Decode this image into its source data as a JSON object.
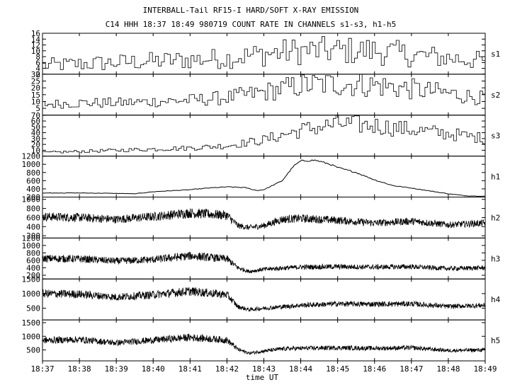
{
  "chart_data": {
    "type": "line",
    "title": "INTERBALL-Tail RF15-I HARD/SOFT X-RAY EMISSION",
    "subtitle": "C14 HHH 18:37 18:49 980719  COUNT RATE IN CHANNELS s1-s3, h1-h5",
    "xlabel": "time UT",
    "x_ticks": [
      "18:37",
      "18:38",
      "18:39",
      "18:40",
      "18:41",
      "18:42",
      "18:43",
      "18:44",
      "18:45",
      "18:46",
      "18:47",
      "18:48",
      "18:49"
    ],
    "grid": false,
    "series": [
      {
        "name": "s1",
        "ylim": [
          2,
          16
        ],
        "y_ticks": [
          "2",
          "4",
          "6",
          "8",
          "10",
          "12",
          "14",
          "16"
        ],
        "noise": 0.35,
        "trend": [
          [
            0,
            5
          ],
          [
            1,
            5.5
          ],
          [
            2,
            6
          ],
          [
            3,
            6.5
          ],
          [
            4,
            7
          ],
          [
            5,
            7.5
          ],
          [
            6,
            9
          ],
          [
            7,
            10
          ],
          [
            8,
            10
          ],
          [
            9,
            10
          ],
          [
            10,
            8.5
          ],
          [
            11,
            7.5
          ],
          [
            12,
            6.5
          ]
        ]
      },
      {
        "name": "s2",
        "ylim": [
          0,
          30
        ],
        "y_ticks": [
          "5",
          "10",
          "15",
          "20",
          "25",
          "30"
        ],
        "noise": 0.3,
        "trend": [
          [
            0,
            8
          ],
          [
            1,
            9
          ],
          [
            2,
            9
          ],
          [
            3,
            10
          ],
          [
            4,
            11
          ],
          [
            5,
            13
          ],
          [
            6,
            17
          ],
          [
            7,
            22
          ],
          [
            8,
            23
          ],
          [
            9,
            22
          ],
          [
            10,
            19
          ],
          [
            11,
            16
          ],
          [
            12,
            12
          ]
        ]
      },
      {
        "name": "s3",
        "ylim": [
          0,
          70
        ],
        "y_ticks": [
          "10",
          "20",
          "30",
          "40",
          "50",
          "60",
          "70"
        ],
        "noise": 0.22,
        "trend": [
          [
            0,
            6
          ],
          [
            1,
            8
          ],
          [
            2,
            10
          ],
          [
            3,
            12
          ],
          [
            4,
            14
          ],
          [
            5,
            18
          ],
          [
            6,
            28
          ],
          [
            7,
            45
          ],
          [
            8,
            55
          ],
          [
            9,
            52
          ],
          [
            10,
            45
          ],
          [
            11,
            38
          ],
          [
            12,
            30
          ]
        ]
      },
      {
        "name": "h1",
        "ylim": [
          200,
          1200
        ],
        "y_ticks": [
          "200",
          "400",
          "600",
          "800",
          "1000",
          "1200"
        ],
        "noise": 0.02,
        "trend": [
          [
            0,
            300
          ],
          [
            1,
            300
          ],
          [
            2,
            290
          ],
          [
            2.5,
            280
          ],
          [
            3,
            330
          ],
          [
            4,
            380
          ],
          [
            4.5,
            420
          ],
          [
            5,
            450
          ],
          [
            5.5,
            430
          ],
          [
            5.8,
            360
          ],
          [
            6,
            380
          ],
          [
            6.5,
            600
          ],
          [
            6.8,
            950
          ],
          [
            7,
            1080
          ],
          [
            7.4,
            1100
          ],
          [
            7.8,
            1000
          ],
          [
            8,
            920
          ],
          [
            8.5,
            800
          ],
          [
            9,
            620
          ],
          [
            9.5,
            480
          ],
          [
            10,
            420
          ],
          [
            10.5,
            350
          ],
          [
            11,
            280
          ],
          [
            11.5,
            230
          ],
          [
            12,
            220
          ]
        ]
      },
      {
        "name": "h2",
        "ylim": [
          150,
          1050
        ],
        "y_ticks": [
          "200",
          "400",
          "600",
          "800",
          "1000"
        ],
        "noise": 0.1,
        "trend": [
          [
            0,
            620
          ],
          [
            1,
            600
          ],
          [
            2,
            560
          ],
          [
            3,
            620
          ],
          [
            4,
            700
          ],
          [
            5,
            650
          ],
          [
            5.3,
            420
          ],
          [
            5.6,
            380
          ],
          [
            6,
            420
          ],
          [
            6.5,
            560
          ],
          [
            7,
            580
          ],
          [
            8,
            540
          ],
          [
            9,
            480
          ],
          [
            10,
            520
          ],
          [
            11,
            440
          ],
          [
            12,
            480
          ]
        ]
      },
      {
        "name": "h3",
        "ylim": [
          100,
          1200
        ],
        "y_ticks": [
          "200",
          "400",
          "600",
          "800",
          "1000",
          "1200"
        ],
        "noise": 0.1,
        "trend": [
          [
            0,
            650
          ],
          [
            1,
            640
          ],
          [
            2,
            580
          ],
          [
            3,
            620
          ],
          [
            4,
            720
          ],
          [
            5,
            640
          ],
          [
            5.3,
            400
          ],
          [
            5.6,
            300
          ],
          [
            6,
            360
          ],
          [
            7,
            420
          ],
          [
            8,
            430
          ],
          [
            9,
            420
          ],
          [
            10,
            430
          ],
          [
            11,
            380
          ],
          [
            12,
            400
          ]
        ]
      },
      {
        "name": "h4",
        "ylim": [
          100,
          1500
        ],
        "y_ticks": [
          "500",
          "1000",
          "1500"
        ],
        "noise": 0.09,
        "trend": [
          [
            0,
            1000
          ],
          [
            1,
            980
          ],
          [
            2,
            880
          ],
          [
            3,
            960
          ],
          [
            4,
            1080
          ],
          [
            5,
            960
          ],
          [
            5.3,
            550
          ],
          [
            5.6,
            450
          ],
          [
            6,
            500
          ],
          [
            7,
            600
          ],
          [
            8,
            650
          ],
          [
            9,
            640
          ],
          [
            10,
            650
          ],
          [
            11,
            560
          ],
          [
            12,
            600
          ]
        ]
      },
      {
        "name": "h5",
        "ylim": [
          100,
          1600
        ],
        "y_ticks": [
          "500",
          "1000",
          "1500"
        ],
        "noise": 0.09,
        "trend": [
          [
            0,
            850
          ],
          [
            1,
            880
          ],
          [
            2,
            760
          ],
          [
            3,
            860
          ],
          [
            4,
            960
          ],
          [
            5,
            860
          ],
          [
            5.3,
            520
          ],
          [
            5.6,
            380
          ],
          [
            6,
            460
          ],
          [
            6.5,
            540
          ],
          [
            7,
            560
          ],
          [
            8,
            580
          ],
          [
            9,
            560
          ],
          [
            10,
            580
          ],
          [
            11,
            480
          ],
          [
            12,
            500
          ]
        ]
      }
    ]
  }
}
